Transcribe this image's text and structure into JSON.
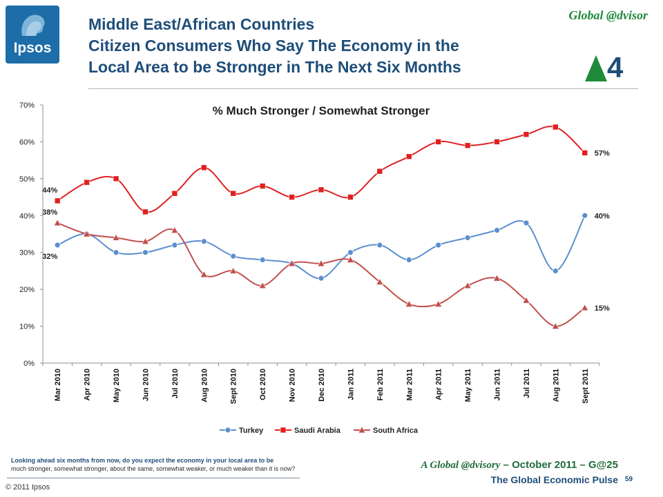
{
  "header": {
    "logo_text": "Ipsos",
    "title_lines": [
      "Middle East/African Countries",
      "Citizen Consumers Who Say The Economy in the",
      "Local Area to be Stronger in The Next Six Months"
    ],
    "brand": "Global @dvisor",
    "badge_number": "4",
    "badge_color": "#1f8a3a",
    "title_color": "#1e4e79"
  },
  "chart_data": {
    "type": "line",
    "title": "% Much Stronger / Somewhat Stronger",
    "categories": [
      "Mar 2010",
      "Apr 2010",
      "May 2010",
      "Jun 2010",
      "Jul 2010",
      "Aug 2010",
      "Sept 2010",
      "Oct 2010",
      "Nov 2010",
      "Dec 2010",
      "Jan 2011",
      "Feb 2011",
      "Mar 2011",
      "Apr 2011",
      "May 2011",
      "Jun 2011",
      "Jul 2011",
      "Aug 2011",
      "Sept 2011"
    ],
    "ylim": [
      0,
      70
    ],
    "yticks": [
      0,
      10,
      20,
      30,
      40,
      50,
      60,
      70
    ],
    "ytick_labels": [
      "0%",
      "10%",
      "20%",
      "30%",
      "40%",
      "50%",
      "60%",
      "70%"
    ],
    "grid": false,
    "legend_position": "bottom",
    "series": [
      {
        "name": "Turkey",
        "color": "#5b8ed0",
        "marker": "circle",
        "values": [
          32,
          35,
          30,
          30,
          32,
          33,
          29,
          28,
          27,
          23,
          30,
          32,
          28,
          32,
          34,
          36,
          38,
          25,
          40
        ]
      },
      {
        "name": "Saudi Arabia",
        "color": "#e02020",
        "marker": "square",
        "values": [
          44,
          49,
          50,
          41,
          46,
          53,
          46,
          48,
          45,
          47,
          45,
          52,
          56,
          60,
          59,
          60,
          62,
          64,
          57
        ]
      },
      {
        "name": "South Africa",
        "color": "#c0504d",
        "marker": "triangle",
        "values": [
          38,
          35,
          34,
          33,
          36,
          24,
          25,
          21,
          27,
          27,
          28,
          22,
          16,
          16,
          21,
          23,
          17,
          10,
          15
        ]
      }
    ],
    "data_labels": [
      {
        "text": "44%",
        "series": 1,
        "index": 0,
        "position": "above"
      },
      {
        "text": "38%",
        "series": 2,
        "index": 0,
        "position": "above"
      },
      {
        "text": "32%",
        "series": 0,
        "index": 0,
        "position": "below"
      },
      {
        "text": "57%",
        "series": 1,
        "index": 18,
        "position": "right"
      },
      {
        "text": "40%",
        "series": 0,
        "index": 18,
        "position": "right"
      },
      {
        "text": "15%",
        "series": 2,
        "index": 18,
        "position": "right"
      }
    ]
  },
  "footer": {
    "question_line1": "Looking ahead six months from now, do you expect the economy in your local area to be",
    "question_line2": "much stronger, somewhat stronger, about the same, somewhat weaker, or much weaker than it is now?",
    "copyright": "© 2011 Ipsos",
    "report_brand": "A Global @dvisory",
    "report_rest": " – October 2011 – G@25",
    "report_subtitle": "The Global Economic Pulse",
    "page_number": "59"
  }
}
